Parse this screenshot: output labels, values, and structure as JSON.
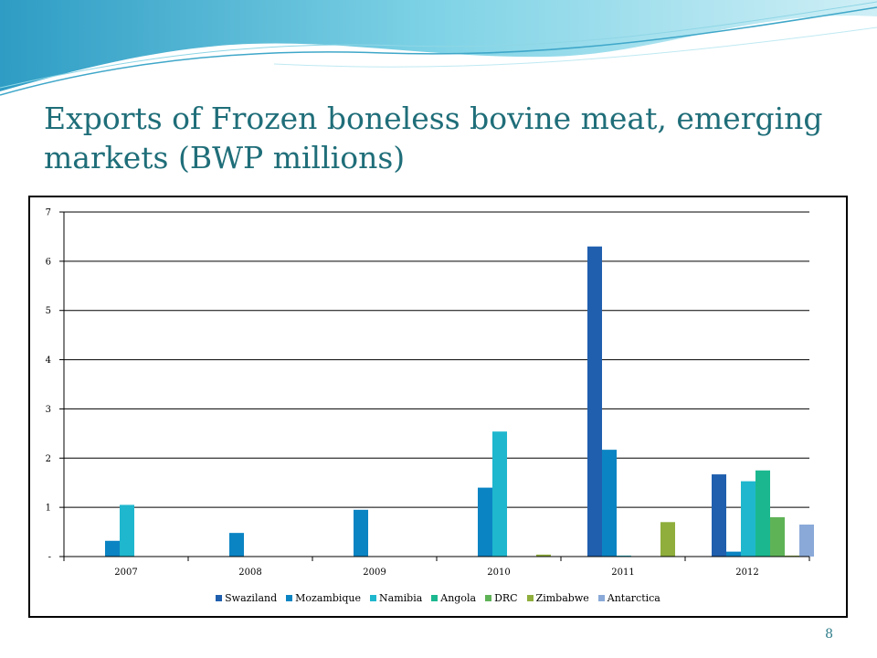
{
  "slide": {
    "title": "Exports of Frozen boneless bovine meat, emerging markets (BWP millions)",
    "page_number": "8"
  },
  "theme": {
    "title_color": "#1F6E79",
    "wave_colors": [
      "#3FA7C9",
      "#7FD3E6",
      "#BFE9F2"
    ]
  },
  "chart_data": {
    "type": "bar",
    "title": "",
    "xlabel": "",
    "ylabel": "",
    "ylim": [
      0,
      7
    ],
    "yticks": [
      "-",
      "1",
      "2",
      "3",
      "4",
      "5",
      "6",
      "7"
    ],
    "grid": true,
    "legend_position": "bottom",
    "categories": [
      "2007",
      "2008",
      "2009",
      "2010",
      "2011",
      "2012"
    ],
    "series": [
      {
        "name": "Swaziland",
        "color": "#1F5FAE",
        "values": [
          0,
          0,
          0,
          0,
          6.3,
          1.67
        ]
      },
      {
        "name": "Mozambique",
        "color": "#0B84C3",
        "values": [
          0.32,
          0.48,
          0.95,
          1.4,
          2.17,
          0.1
        ]
      },
      {
        "name": "Namibia",
        "color": "#1FB7CE",
        "values": [
          1.05,
          0,
          0,
          2.54,
          0.02,
          1.53
        ]
      },
      {
        "name": "Angola",
        "color": "#1BB88F",
        "values": [
          0,
          0,
          0,
          0,
          0,
          1.75
        ]
      },
      {
        "name": "DRC",
        "color": "#5FB357",
        "values": [
          0,
          0,
          0,
          0,
          0,
          0.8
        ]
      },
      {
        "name": "Zimbabwe",
        "color": "#8FAE3C",
        "values": [
          0,
          0,
          0,
          0.04,
          0.7,
          0.02
        ]
      },
      {
        "name": "Antarctica",
        "color": "#8AA9D8",
        "values": [
          0,
          0,
          0,
          0,
          0,
          0.65
        ]
      }
    ]
  }
}
